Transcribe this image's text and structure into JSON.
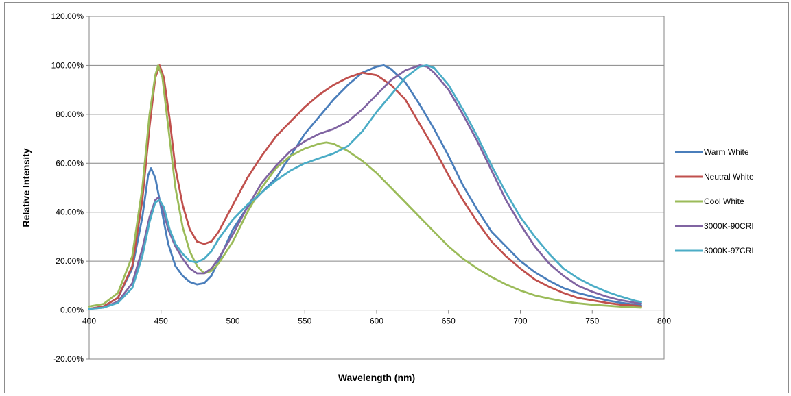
{
  "chart_data": {
    "type": "line",
    "title": "",
    "xlabel": "Wavelength (nm)",
    "ylabel": "Relative Intensity",
    "xlim": [
      400,
      800
    ],
    "ylim": [
      -20,
      120
    ],
    "x_ticks": [
      400,
      450,
      500,
      550,
      600,
      650,
      700,
      750,
      800
    ],
    "x_tick_labels": [
      "400",
      "450",
      "500",
      "550",
      "600",
      "650",
      "700",
      "750",
      "800"
    ],
    "y_ticks": [
      -20,
      0,
      20,
      40,
      60,
      80,
      100,
      120
    ],
    "y_tick_labels": [
      "-20.00%",
      "0.00%",
      "20.00%",
      "40.00%",
      "60.00%",
      "80.00%",
      "100.00%",
      "120.00%"
    ],
    "grid": "horizontal major gridlines",
    "legend_position": "right",
    "series": [
      {
        "name": "Warm White",
        "color": "#4a7ebb",
        "points": [
          [
            400,
            0.5
          ],
          [
            410,
            1.5
          ],
          [
            420,
            5
          ],
          [
            430,
            17
          ],
          [
            437,
            38
          ],
          [
            441,
            55
          ],
          [
            443,
            58
          ],
          [
            446,
            54
          ],
          [
            450,
            42
          ],
          [
            455,
            27
          ],
          [
            460,
            18
          ],
          [
            465,
            14
          ],
          [
            470,
            11.5
          ],
          [
            475,
            10.5
          ],
          [
            480,
            11
          ],
          [
            485,
            14
          ],
          [
            490,
            20
          ],
          [
            500,
            33
          ],
          [
            510,
            42
          ],
          [
            520,
            48
          ],
          [
            530,
            54
          ],
          [
            540,
            63
          ],
          [
            550,
            72
          ],
          [
            560,
            79
          ],
          [
            570,
            86
          ],
          [
            580,
            92
          ],
          [
            590,
            97
          ],
          [
            600,
            99.5
          ],
          [
            605,
            100
          ],
          [
            610,
            98.5
          ],
          [
            620,
            93
          ],
          [
            630,
            84
          ],
          [
            640,
            74
          ],
          [
            650,
            63
          ],
          [
            660,
            51
          ],
          [
            670,
            41
          ],
          [
            680,
            32
          ],
          [
            690,
            26
          ],
          [
            700,
            20
          ],
          [
            710,
            15.5
          ],
          [
            720,
            12
          ],
          [
            730,
            9
          ],
          [
            740,
            7
          ],
          [
            750,
            5.5
          ],
          [
            760,
            4
          ],
          [
            770,
            3
          ],
          [
            780,
            2.2
          ],
          [
            784,
            2
          ]
        ]
      },
      {
        "name": "Neutral White",
        "color": "#c0504d",
        "points": [
          [
            400,
            0.5
          ],
          [
            410,
            1.5
          ],
          [
            420,
            5
          ],
          [
            430,
            18
          ],
          [
            437,
            45
          ],
          [
            442,
            75
          ],
          [
            446,
            95
          ],
          [
            449,
            100
          ],
          [
            452,
            95
          ],
          [
            456,
            78
          ],
          [
            460,
            58
          ],
          [
            465,
            43
          ],
          [
            470,
            33
          ],
          [
            475,
            28
          ],
          [
            480,
            27
          ],
          [
            485,
            28
          ],
          [
            490,
            32
          ],
          [
            500,
            43
          ],
          [
            510,
            54
          ],
          [
            520,
            63
          ],
          [
            530,
            71
          ],
          [
            540,
            77
          ],
          [
            550,
            83
          ],
          [
            560,
            88
          ],
          [
            570,
            92
          ],
          [
            580,
            95
          ],
          [
            590,
            97
          ],
          [
            600,
            96
          ],
          [
            610,
            92
          ],
          [
            620,
            86
          ],
          [
            630,
            76
          ],
          [
            640,
            66
          ],
          [
            650,
            55
          ],
          [
            660,
            45
          ],
          [
            670,
            36
          ],
          [
            680,
            28
          ],
          [
            690,
            22
          ],
          [
            700,
            17
          ],
          [
            710,
            12.5
          ],
          [
            720,
            9.5
          ],
          [
            730,
            7
          ],
          [
            740,
            5
          ],
          [
            750,
            4
          ],
          [
            760,
            3
          ],
          [
            770,
            2.2
          ],
          [
            780,
            1.8
          ],
          [
            784,
            1.5
          ]
        ]
      },
      {
        "name": "Cool White",
        "color": "#9bbb59",
        "points": [
          [
            400,
            1.5
          ],
          [
            410,
            2.5
          ],
          [
            420,
            7
          ],
          [
            430,
            22
          ],
          [
            437,
            50
          ],
          [
            442,
            80
          ],
          [
            446,
            96
          ],
          [
            448,
            100
          ],
          [
            451,
            95
          ],
          [
            455,
            75
          ],
          [
            460,
            50
          ],
          [
            465,
            34
          ],
          [
            470,
            24
          ],
          [
            475,
            18
          ],
          [
            480,
            15
          ],
          [
            485,
            16
          ],
          [
            490,
            19
          ],
          [
            500,
            28
          ],
          [
            510,
            40
          ],
          [
            520,
            50
          ],
          [
            530,
            58
          ],
          [
            540,
            63
          ],
          [
            550,
            66
          ],
          [
            560,
            68
          ],
          [
            565,
            68.5
          ],
          [
            570,
            68
          ],
          [
            580,
            65
          ],
          [
            590,
            61
          ],
          [
            600,
            56
          ],
          [
            610,
            50
          ],
          [
            620,
            44
          ],
          [
            630,
            38
          ],
          [
            640,
            32
          ],
          [
            650,
            26
          ],
          [
            660,
            21
          ],
          [
            670,
            17
          ],
          [
            680,
            13.5
          ],
          [
            690,
            10.5
          ],
          [
            700,
            8
          ],
          [
            710,
            6
          ],
          [
            720,
            4.7
          ],
          [
            730,
            3.6
          ],
          [
            740,
            2.8
          ],
          [
            750,
            2.2
          ],
          [
            760,
            1.8
          ],
          [
            770,
            1.4
          ],
          [
            780,
            1.1
          ],
          [
            784,
            1
          ]
        ]
      },
      {
        "name": "3000K-90CRI",
        "color": "#8064a2",
        "points": [
          [
            400,
            0.5
          ],
          [
            410,
            1
          ],
          [
            420,
            3.5
          ],
          [
            430,
            11
          ],
          [
            437,
            25
          ],
          [
            442,
            38
          ],
          [
            446,
            45
          ],
          [
            448,
            46
          ],
          [
            451,
            42
          ],
          [
            455,
            33
          ],
          [
            460,
            26
          ],
          [
            465,
            21
          ],
          [
            470,
            17
          ],
          [
            475,
            15
          ],
          [
            480,
            15
          ],
          [
            485,
            17
          ],
          [
            490,
            21
          ],
          [
            500,
            31
          ],
          [
            510,
            42
          ],
          [
            520,
            52
          ],
          [
            530,
            59
          ],
          [
            540,
            65
          ],
          [
            550,
            69
          ],
          [
            560,
            72
          ],
          [
            570,
            74
          ],
          [
            580,
            77
          ],
          [
            590,
            82
          ],
          [
            600,
            88
          ],
          [
            610,
            94
          ],
          [
            620,
            98
          ],
          [
            630,
            100
          ],
          [
            635,
            99.5
          ],
          [
            640,
            97
          ],
          [
            650,
            90
          ],
          [
            660,
            80
          ],
          [
            670,
            69
          ],
          [
            680,
            57
          ],
          [
            690,
            45
          ],
          [
            700,
            35
          ],
          [
            710,
            26
          ],
          [
            720,
            19
          ],
          [
            730,
            14
          ],
          [
            740,
            10
          ],
          [
            750,
            7.5
          ],
          [
            760,
            5.5
          ],
          [
            770,
            4
          ],
          [
            780,
            3
          ],
          [
            784,
            2.7
          ]
        ]
      },
      {
        "name": "3000K-97CRI",
        "color": "#4bacc6",
        "points": [
          [
            400,
            0.5
          ],
          [
            410,
            1
          ],
          [
            420,
            3
          ],
          [
            430,
            9
          ],
          [
            437,
            22
          ],
          [
            442,
            36
          ],
          [
            446,
            44
          ],
          [
            449,
            45
          ],
          [
            452,
            42
          ],
          [
            456,
            33
          ],
          [
            460,
            27
          ],
          [
            465,
            23
          ],
          [
            470,
            20
          ],
          [
            475,
            19.5
          ],
          [
            480,
            21
          ],
          [
            485,
            24
          ],
          [
            490,
            29
          ],
          [
            500,
            37
          ],
          [
            510,
            43
          ],
          [
            520,
            48
          ],
          [
            530,
            53
          ],
          [
            540,
            57
          ],
          [
            550,
            60
          ],
          [
            560,
            62
          ],
          [
            570,
            64
          ],
          [
            580,
            67
          ],
          [
            590,
            73
          ],
          [
            600,
            81
          ],
          [
            610,
            88
          ],
          [
            620,
            95
          ],
          [
            630,
            99.5
          ],
          [
            635,
            100
          ],
          [
            640,
            99
          ],
          [
            650,
            92
          ],
          [
            660,
            82
          ],
          [
            670,
            71
          ],
          [
            680,
            59
          ],
          [
            690,
            48
          ],
          [
            700,
            38
          ],
          [
            710,
            30
          ],
          [
            720,
            23
          ],
          [
            730,
            17
          ],
          [
            740,
            13
          ],
          [
            750,
            10
          ],
          [
            760,
            7.5
          ],
          [
            770,
            5.5
          ],
          [
            780,
            3.8
          ],
          [
            784,
            3.3
          ]
        ]
      }
    ]
  }
}
